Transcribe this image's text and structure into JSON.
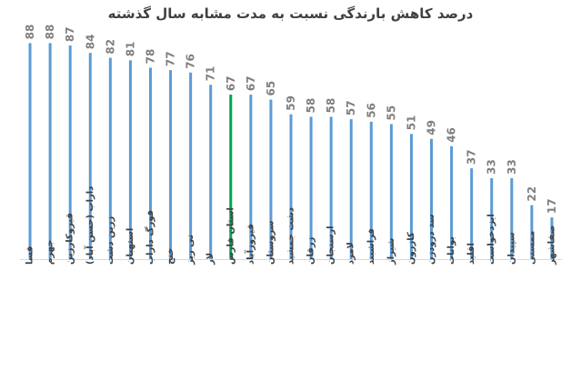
{
  "chart_data": {
    "type": "bar",
    "title": "درصد کاهش بارندگی نسبت به مدت مشابه سال گذشته",
    "xlabel": "",
    "ylabel": "",
    "ylim": [
      0,
      100
    ],
    "grid": false,
    "legend": "none",
    "categories": [
      "فسا",
      "جهرم",
      "قیروکارزین",
      "داراب (حسن آباد)",
      "زرین دشت",
      "استهبان",
      "فورگ داراب",
      "خنج",
      "نی ریز",
      "لار",
      "استان فارس",
      "فیروزآباد",
      "سروستان",
      "دشت جمشید",
      "زرقان",
      "ارسنجان",
      "لامرد",
      "فراشبند",
      "شیراز",
      "کازرون",
      "سد درودزن",
      "بوانات",
      "اقلید",
      "ایزدخواست",
      "سپیدان",
      "ممسنی",
      "صفاشهر"
    ],
    "values": [
      88,
      88,
      87,
      84,
      82,
      81,
      78,
      77,
      76,
      71,
      67,
      67,
      65,
      59,
      58,
      58,
      57,
      56,
      55,
      51,
      49,
      46,
      37,
      33,
      33,
      22,
      17
    ],
    "colors": {
      "bar": "#5b9bd5",
      "highlight": "#00a651",
      "baseline": "#d9d9d9"
    },
    "highlight_index": 10
  }
}
